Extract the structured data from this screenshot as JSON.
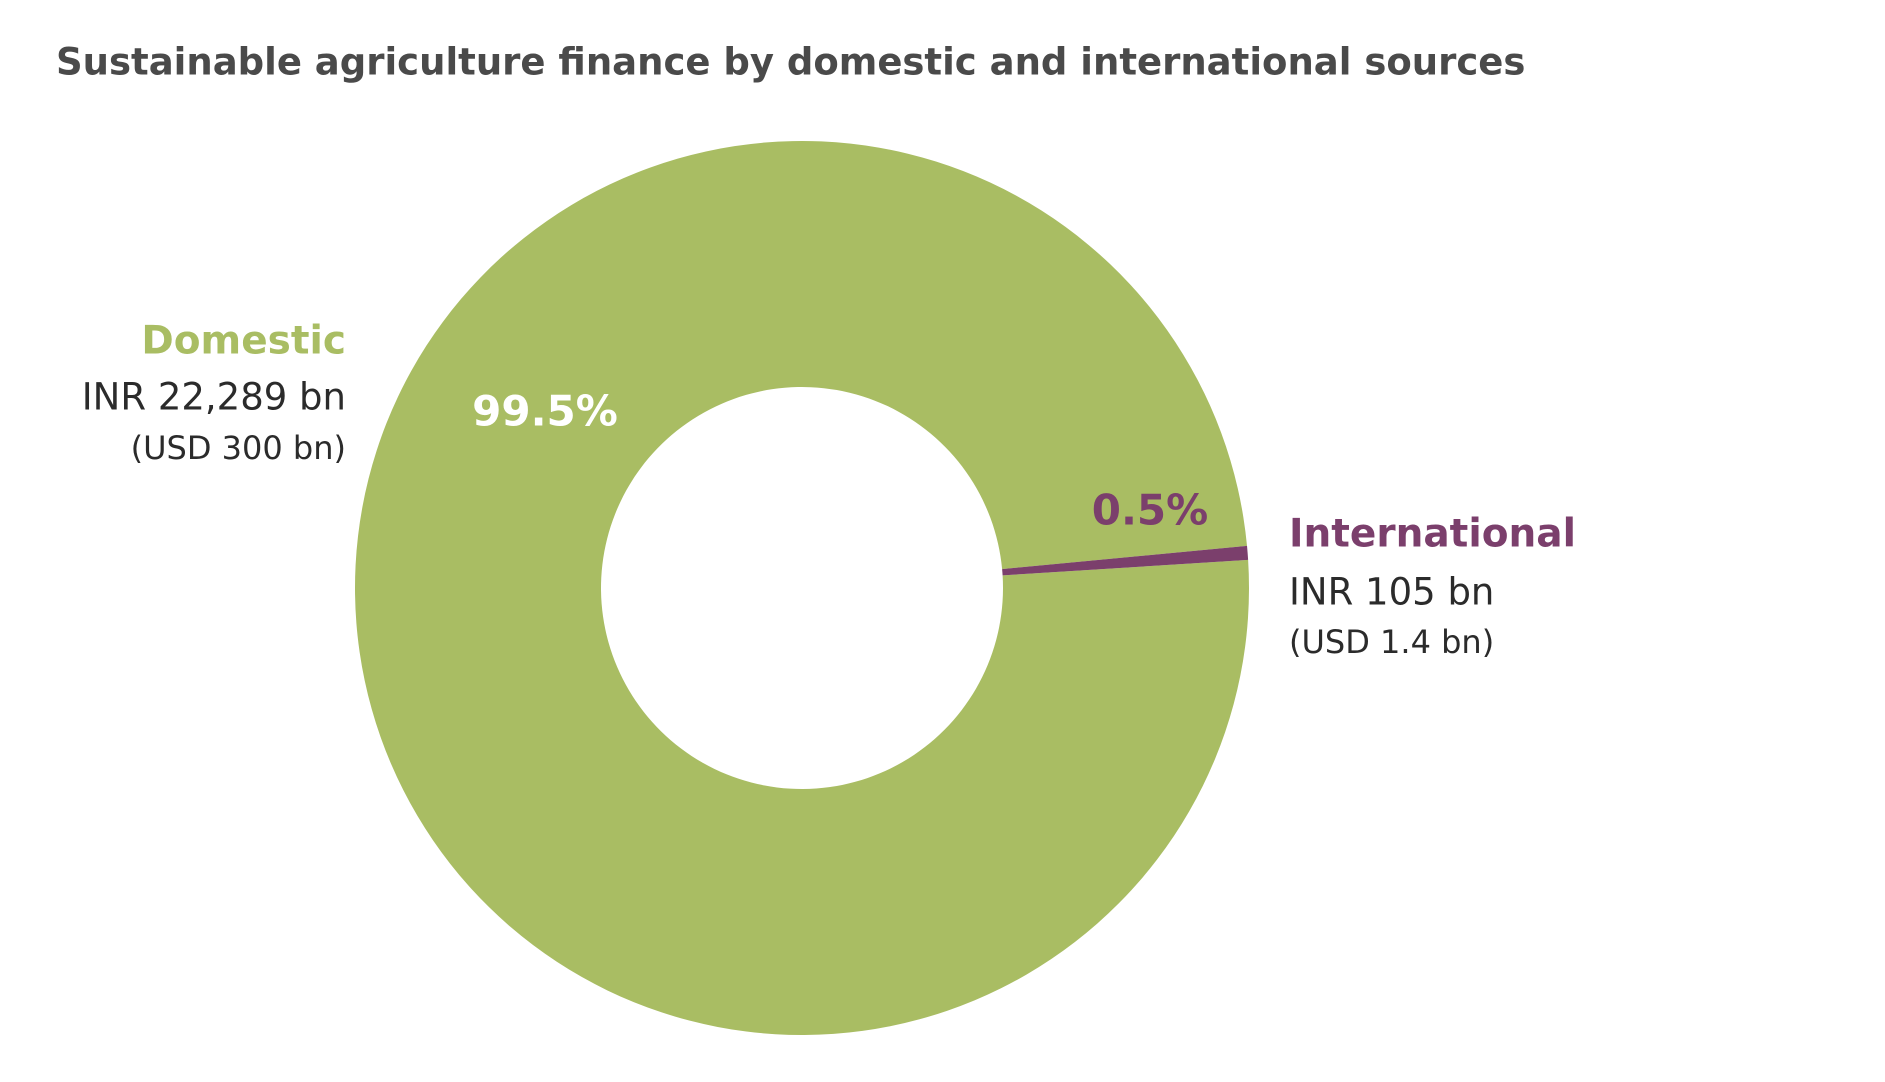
{
  "chart_data": {
    "type": "donut",
    "title": "Sustainable agriculture finance by domestic and international sources",
    "categories": [
      "Domestic",
      "International"
    ],
    "values": [
      99.5,
      0.5
    ],
    "value_labels": [
      "99.5%",
      "0.5%"
    ],
    "amount_labels": [
      "INR 22,289 bn",
      "INR 105 bn"
    ],
    "usd_labels": [
      "(USD 300 bn)",
      "(USD 1.4 bn)"
    ],
    "colors": [
      "#a9bd63",
      "#7b3f6c"
    ]
  }
}
